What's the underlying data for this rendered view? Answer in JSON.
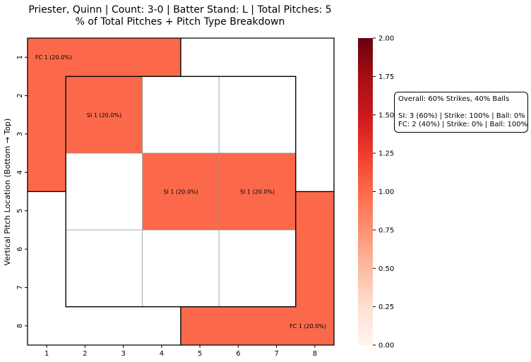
{
  "chart_data": {
    "type": "heatmap",
    "title_lines": [
      "Priester, Quinn | Count: 3-0 | Batter Stand: L | Total Pitches: 5",
      "% of Total Pitches + Pitch Type Breakdown"
    ],
    "ylabel": "Vertical Pitch Location (Bottom → Top)",
    "x_ticks": [
      "1",
      "2",
      "3",
      "4",
      "5",
      "6",
      "7",
      "8"
    ],
    "y_ticks": [
      "1",
      "2",
      "3",
      "4",
      "5",
      "6",
      "7",
      "8"
    ],
    "colorbar": {
      "range": [
        0.0,
        2.0
      ],
      "ticks": [
        "0.00",
        "0.25",
        "0.50",
        "0.75",
        "1.00",
        "1.25",
        "1.50",
        "1.75",
        "2.00"
      ],
      "colormap": "Reds"
    },
    "cells": [
      {
        "zone": "outside-top-left",
        "value": 1,
        "label": "FC 1 (20.0%)"
      },
      {
        "zone": "outside-top-right",
        "value": 0,
        "label": ""
      },
      {
        "zone": "outside-bottom-left",
        "value": 0,
        "label": ""
      },
      {
        "zone": "outside-bottom-right",
        "value": 1,
        "label": "FC 1 (20.0%)"
      },
      {
        "zone": "inner-1",
        "value": 1,
        "label": "SI 1 (20.0%)"
      },
      {
        "zone": "inner-2",
        "value": 0,
        "label": ""
      },
      {
        "zone": "inner-3",
        "value": 0,
        "label": ""
      },
      {
        "zone": "inner-4",
        "value": 0,
        "label": ""
      },
      {
        "zone": "inner-5",
        "value": 1,
        "label": "SI 1 (20.0%)"
      },
      {
        "zone": "inner-6",
        "value": 1,
        "label": "SI 1 (20.0%)"
      },
      {
        "zone": "inner-7",
        "value": 0,
        "label": ""
      },
      {
        "zone": "inner-8",
        "value": 0,
        "label": ""
      },
      {
        "zone": "inner-9",
        "value": 0,
        "label": ""
      }
    ],
    "annotation_lines": [
      "Overall: 60% Strikes, 40% Balls",
      "",
      "SI: 3 (60%) | Strike: 100% | Ball: 0%",
      "FC: 2 (40%) | Strike: 0% | Ball: 100%"
    ],
    "colors": {
      "filled": "#fb694a",
      "empty": "#ffffff",
      "cmap_low": "#fff5f0",
      "cmap_high": "#67000d"
    }
  }
}
